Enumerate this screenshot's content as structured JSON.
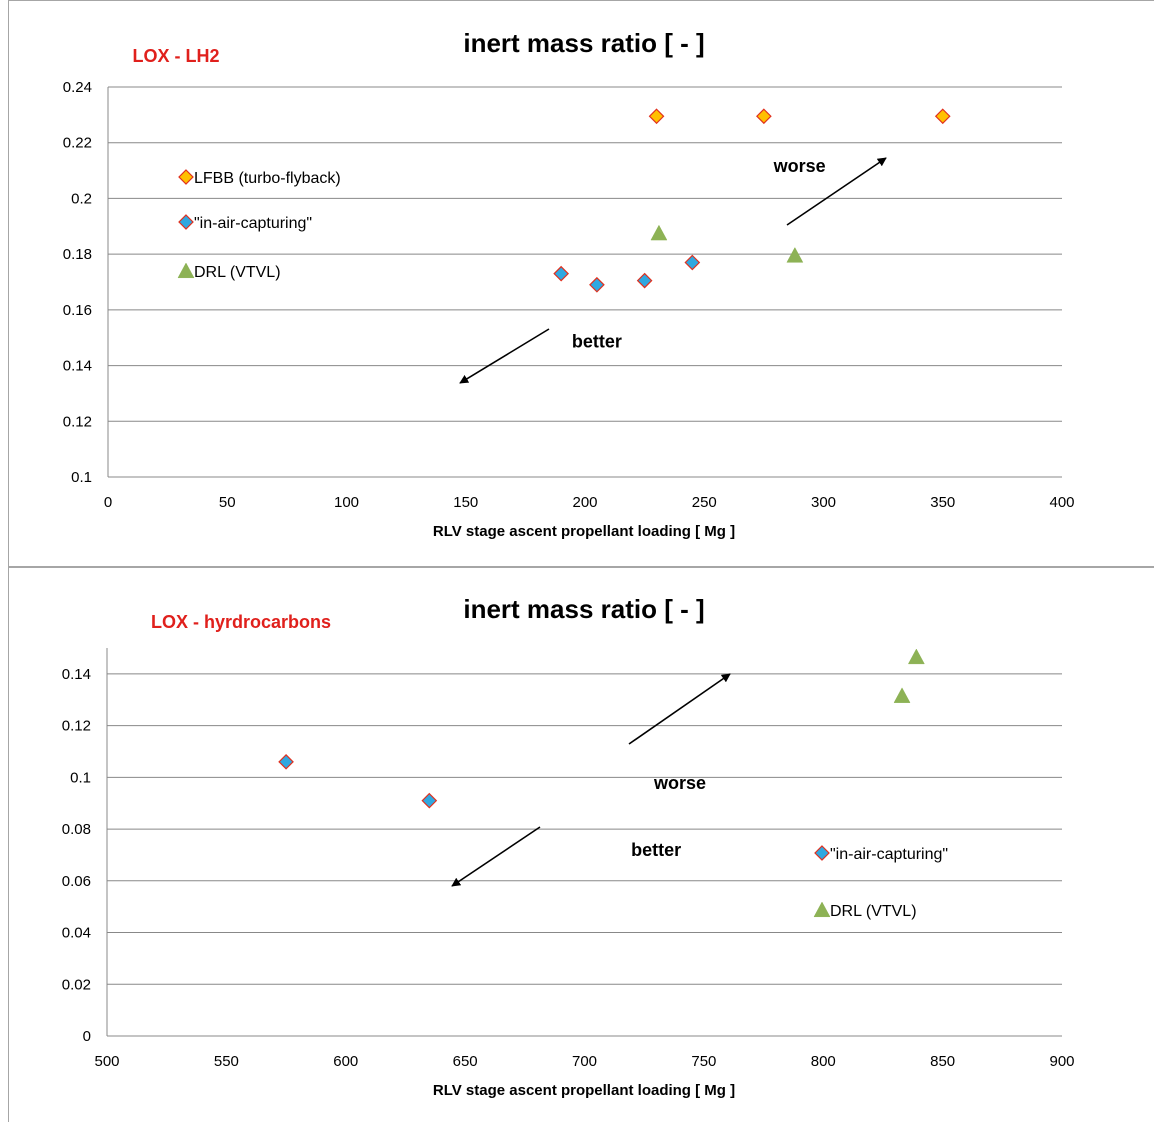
{
  "charts": [
    {
      "chart_data": {
        "type": "scatter",
        "title": "inert mass ratio [ - ]",
        "propellant_label": "LOX - LH2",
        "xlabel": "RLV stage ascent propellant loading [ Mg ]",
        "ylabel": "",
        "xlim": [
          0,
          400
        ],
        "ylim": [
          0.1,
          0.24
        ],
        "x_ticks": [
          "0",
          "50",
          "100",
          "150",
          "200",
          "250",
          "300",
          "350",
          "400"
        ],
        "y_ticks": [
          "0.1",
          "0.12",
          "0.14",
          "0.16",
          "0.18",
          "0.2",
          "0.22",
          "0.24"
        ],
        "grid": "horizontal",
        "legend_position": "left",
        "series": [
          {
            "name": "LFBB (turbo-flyback)",
            "marker": "diamond",
            "color": "#FFC000",
            "edge": "#E0301E",
            "points": [
              [
                230,
                0.2295
              ],
              [
                275,
                0.2295
              ],
              [
                350,
                0.2295
              ]
            ]
          },
          {
            "name": "\"in-air-capturing\"",
            "marker": "diamond",
            "color": "#2FA8E0",
            "edge": "#E0301E",
            "points": [
              [
                190,
                0.173
              ],
              [
                205,
                0.169
              ],
              [
                225,
                0.1705
              ],
              [
                245,
                0.177
              ]
            ]
          },
          {
            "name": "DRL (VTVL)",
            "marker": "triangle",
            "color": "#8DB255",
            "edge": "#8DB255",
            "points": [
              [
                231,
                0.1875
              ],
              [
                288,
                0.1795
              ]
            ]
          }
        ],
        "annotations": [
          {
            "text": "worse",
            "x": 290,
            "y": 0.2095
          },
          {
            "text": "better",
            "x": 205,
            "y": 0.1465
          }
        ]
      }
    },
    {
      "chart_data": {
        "type": "scatter",
        "title": "inert mass ratio [ - ]",
        "propellant_label": "LOX - hyrdrocarbons",
        "xlabel": "RLV stage ascent propellant loading [ Mg ]",
        "ylabel": "",
        "xlim": [
          500,
          900
        ],
        "ylim": [
          0,
          0.15
        ],
        "x_ticks": [
          "500",
          "550",
          "600",
          "650",
          "700",
          "750",
          "800",
          "850",
          "900"
        ],
        "y_ticks": [
          "0",
          "0.02",
          "0.04",
          "0.06",
          "0.08",
          "0.1",
          "0.12",
          "0.14"
        ],
        "grid": "horizontal",
        "legend_position": "right",
        "series": [
          {
            "name": "\"in-air-capturing\"",
            "marker": "diamond",
            "color": "#2FA8E0",
            "edge": "#E0301E",
            "points": [
              [
                575,
                0.106
              ],
              [
                635,
                0.091
              ]
            ]
          },
          {
            "name": "DRL (VTVL)",
            "marker": "triangle",
            "color": "#8DB255",
            "edge": "#8DB255",
            "points": [
              [
                833,
                0.1315
              ],
              [
                839,
                0.1465
              ]
            ]
          }
        ],
        "annotations": [
          {
            "text": "worse",
            "x": 740,
            "y": 0.0955
          },
          {
            "text": "better",
            "x": 730,
            "y": 0.0695
          }
        ]
      }
    }
  ]
}
